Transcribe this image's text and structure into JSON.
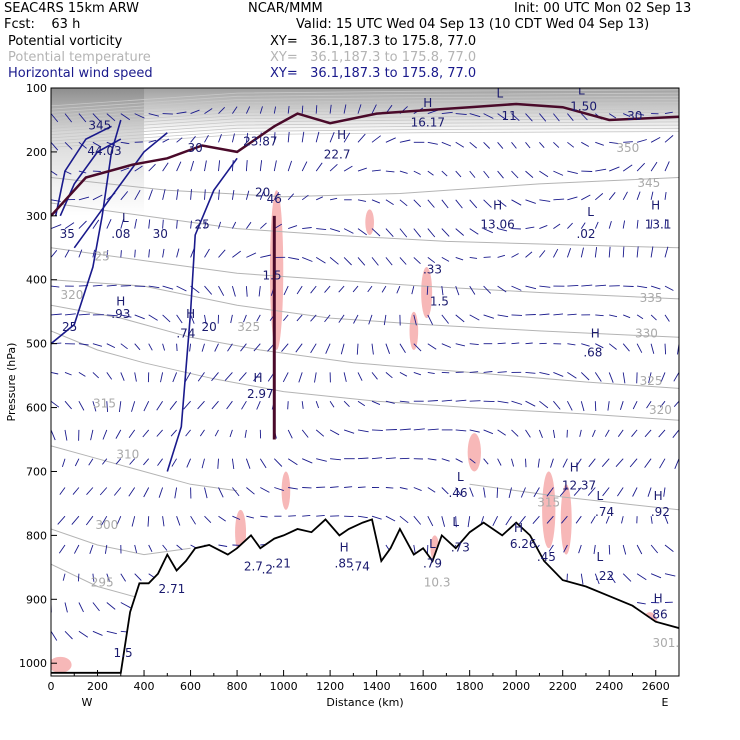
{
  "header": {
    "model": "SEAC4RS 15km ARW",
    "org": "NCAR/MMM",
    "init": "Init: 00 UTC Mon 02 Sep 13",
    "fcst": "Fcst:    63 h",
    "valid": "Valid: 15 UTC Wed 04 Sep 13 (10 CDT Wed 04 Sep 13)"
  },
  "legend": [
    {
      "label": "Potential vorticity",
      "xy": "XY=   36.1,187.3 to 175.8, 77.0",
      "color": "#000000"
    },
    {
      "label": "Potential temperature",
      "xy": "XY=   36.1,187.3 to 175.8, 77.0",
      "color": "#b4b4b4"
    },
    {
      "label": "Horizontal wind speed",
      "xy": "XY=   36.1,187.3 to 175.8, 77.0",
      "color": "#1a1a8c"
    }
  ],
  "chart_data": {
    "type": "cross-section",
    "xlabel": "Distance (km)",
    "ylabel": "Pressure (hPa)",
    "xlim": [
      0,
      2700
    ],
    "ylim": [
      1020,
      100
    ],
    "x_ticks": [
      "0",
      "200",
      "400",
      "600",
      "800",
      "1000",
      "1200",
      "1400",
      "1600",
      "1800",
      "2000",
      "2200",
      "2400",
      "2600"
    ],
    "y_ticks": [
      "100",
      "200",
      "300",
      "400",
      "500",
      "600",
      "700",
      "800",
      "900",
      "1000"
    ],
    "y_tick_values": [
      100,
      200,
      300,
      400,
      500,
      600,
      700,
      800,
      900,
      1000
    ],
    "end_labels": {
      "left": "W",
      "right": "E"
    },
    "terrain": [
      [
        0,
        1015
      ],
      [
        300,
        1015
      ],
      [
        340,
        920
      ],
      [
        380,
        875
      ],
      [
        420,
        875
      ],
      [
        460,
        860
      ],
      [
        500,
        830
      ],
      [
        540,
        855
      ],
      [
        580,
        840
      ],
      [
        620,
        820
      ],
      [
        680,
        815
      ],
      [
        760,
        830
      ],
      [
        800,
        820
      ],
      [
        860,
        800
      ],
      [
        900,
        820
      ],
      [
        960,
        805
      ],
      [
        1000,
        800
      ],
      [
        1060,
        790
      ],
      [
        1120,
        795
      ],
      [
        1180,
        775
      ],
      [
        1240,
        800
      ],
      [
        1280,
        790
      ],
      [
        1340,
        780
      ],
      [
        1380,
        775
      ],
      [
        1420,
        840
      ],
      [
        1460,
        820
      ],
      [
        1500,
        790
      ],
      [
        1560,
        830
      ],
      [
        1600,
        820
      ],
      [
        1640,
        840
      ],
      [
        1680,
        800
      ],
      [
        1740,
        820
      ],
      [
        1800,
        795
      ],
      [
        1860,
        780
      ],
      [
        1940,
        800
      ],
      [
        2000,
        780
      ],
      [
        2060,
        800
      ],
      [
        2120,
        840
      ],
      [
        2200,
        870
      ],
      [
        2300,
        880
      ],
      [
        2400,
        895
      ],
      [
        2500,
        910
      ],
      [
        2600,
        935
      ],
      [
        2700,
        945
      ]
    ],
    "theta_contours": [
      {
        "label": "295",
        "points": [
          [
            0,
            845
          ],
          [
            200,
            880
          ],
          [
            400,
            900
          ]
        ]
      },
      {
        "label": "300",
        "points": [
          [
            0,
            790
          ],
          [
            200,
            815
          ],
          [
            400,
            830
          ],
          [
            600,
            820
          ]
        ]
      },
      {
        "label": "310",
        "points": [
          [
            0,
            660
          ],
          [
            200,
            680
          ],
          [
            400,
            700
          ],
          [
            600,
            720
          ],
          [
            800,
            730
          ]
        ]
      },
      {
        "label": "315",
        "points": [
          [
            1800,
            720
          ],
          [
            2200,
            740
          ],
          [
            2700,
            760
          ]
        ]
      },
      {
        "label": "320",
        "points": [
          [
            0,
            480
          ],
          [
            200,
            510
          ],
          [
            400,
            530
          ],
          [
            700,
            555
          ],
          [
            1000,
            575
          ],
          [
            1400,
            590
          ],
          [
            1800,
            600
          ],
          [
            2300,
            610
          ],
          [
            2700,
            620
          ]
        ]
      },
      {
        "label": "325",
        "points": [
          [
            0,
            440
          ],
          [
            300,
            460
          ],
          [
            600,
            490
          ],
          [
            900,
            510
          ],
          [
            1300,
            530
          ],
          [
            1800,
            545
          ],
          [
            2300,
            560
          ],
          [
            2700,
            570
          ]
        ]
      },
      {
        "label": "330",
        "points": [
          [
            0,
            400
          ],
          [
            400,
            410
          ],
          [
            800,
            440
          ],
          [
            1200,
            460
          ],
          [
            1600,
            470
          ],
          [
            2100,
            480
          ],
          [
            2700,
            490
          ]
        ]
      },
      {
        "label": "335",
        "points": [
          [
            0,
            350
          ],
          [
            400,
            370
          ],
          [
            800,
            390
          ],
          [
            1200,
            400
          ],
          [
            1600,
            410
          ],
          [
            2100,
            420
          ],
          [
            2700,
            430
          ]
        ]
      },
      {
        "label": "345",
        "points": [
          [
            0,
            280
          ],
          [
            400,
            300
          ],
          [
            800,
            320
          ],
          [
            1200,
            330
          ],
          [
            1700,
            340
          ],
          [
            2200,
            345
          ],
          [
            2700,
            350
          ]
        ]
      },
      {
        "label": "350",
        "points": [
          [
            0,
            240
          ],
          [
            500,
            260
          ],
          [
            1000,
            270
          ],
          [
            1500,
            265
          ],
          [
            2100,
            250
          ],
          [
            2700,
            240
          ]
        ]
      }
    ],
    "wind_contours": [
      {
        "label": "25",
        "points": [
          [
            0,
            500
          ],
          [
            100,
            470
          ],
          [
            180,
            380
          ],
          [
            220,
            300
          ],
          [
            260,
            200
          ],
          [
            300,
            150
          ]
        ]
      },
      {
        "label": "25",
        "points": [
          [
            500,
            700
          ],
          [
            560,
            630
          ],
          [
            600,
            450
          ],
          [
            620,
            330
          ],
          [
            700,
            260
          ],
          [
            800,
            210
          ]
        ]
      },
      {
        "label": "30",
        "points": [
          [
            100,
            350
          ],
          [
            200,
            300
          ],
          [
            300,
            250
          ],
          [
            400,
            200
          ],
          [
            500,
            170
          ]
        ]
      },
      {
        "label": "30",
        "points": [
          [
            40,
            300
          ],
          [
            100,
            250
          ],
          [
            200,
            200
          ],
          [
            300,
            180
          ]
        ]
      },
      {
        "label": "35",
        "points": [
          [
            20,
            300
          ],
          [
            60,
            230
          ],
          [
            150,
            180
          ],
          [
            260,
            160
          ]
        ]
      }
    ],
    "pv_line": [
      [
        0,
        300
      ],
      [
        150,
        240
      ],
      [
        350,
        220
      ],
      [
        500,
        210
      ],
      [
        650,
        190
      ],
      [
        800,
        200
      ],
      [
        960,
        160
      ],
      [
        1060,
        140
      ],
      [
        1200,
        155
      ],
      [
        1400,
        140
      ],
      [
        1600,
        135
      ],
      [
        1800,
        130
      ],
      [
        2000,
        125
      ],
      [
        2200,
        130
      ],
      [
        2400,
        150
      ],
      [
        2700,
        145
      ]
    ],
    "pv_deep_column": {
      "x": 960,
      "from": 300,
      "to": 650
    },
    "annotations": [
      {
        "text": "H",
        "x": 1620,
        "y": 130
      },
      {
        "text": "16.17",
        "x": 1620,
        "y": 160
      },
      {
        "text": "L",
        "x": 1930,
        "y": 115
      },
      {
        "text": "11",
        "x": 1970,
        "y": 150
      },
      {
        "text": "L",
        "x": 2280,
        "y": 110
      },
      {
        "text": "1.50",
        "x": 2290,
        "y": 135
      },
      {
        "text": "30",
        "x": 2510,
        "y": 150
      },
      {
        "text": "345",
        "x": 210,
        "y": 165
      },
      {
        "text": "44.03",
        "x": 230,
        "y": 205
      },
      {
        "text": "30",
        "x": 620,
        "y": 200
      },
      {
        "text": "23.87",
        "x": 900,
        "y": 190
      },
      {
        "text": "H",
        "x": 1250,
        "y": 180
      },
      {
        "text": "22.7",
        "x": 1230,
        "y": 210
      },
      {
        "text": "20",
        "x": 910,
        "y": 270
      },
      {
        "text": "46",
        "x": 960,
        "y": 280
      },
      {
        "text": "H",
        "x": 1920,
        "y": 290
      },
      {
        "text": "13.06",
        "x": 1920,
        "y": 320
      },
      {
        "text": "L",
        "x": 2320,
        "y": 300
      },
      {
        "text": ".02",
        "x": 2300,
        "y": 335
      },
      {
        "text": "H",
        "x": 2600,
        "y": 290
      },
      {
        "text": "13.1",
        "x": 2610,
        "y": 320
      },
      {
        "text": "L",
        "x": 320,
        "y": 310
      },
      {
        "text": ".08",
        "x": 300,
        "y": 335
      },
      {
        "text": "30",
        "x": 470,
        "y": 335
      },
      {
        "text": "25",
        "x": 650,
        "y": 320
      },
      {
        "text": "35",
        "x": 70,
        "y": 335
      },
      {
        "text": "1.5",
        "x": 950,
        "y": 400
      },
      {
        "text": ".33",
        "x": 1640,
        "y": 390
      },
      {
        "text": "1.5",
        "x": 1670,
        "y": 440
      },
      {
        "text": "H",
        "x": 300,
        "y": 440
      },
      {
        "text": ".93",
        "x": 300,
        "y": 460
      },
      {
        "text": "H",
        "x": 600,
        "y": 460
      },
      {
        "text": ".74",
        "x": 580,
        "y": 490
      },
      {
        "text": "20",
        "x": 680,
        "y": 480
      },
      {
        "text": "25",
        "x": 80,
        "y": 480
      },
      {
        "text": "H",
        "x": 2340,
        "y": 490
      },
      {
        "text": ".68",
        "x": 2330,
        "y": 520
      },
      {
        "text": "H",
        "x": 890,
        "y": 560
      },
      {
        "text": "2.97",
        "x": 900,
        "y": 585
      },
      {
        "text": "L",
        "x": 1760,
        "y": 715
      },
      {
        "text": ".46",
        "x": 1750,
        "y": 740
      },
      {
        "text": "H",
        "x": 2250,
        "y": 700
      },
      {
        "text": "12.37",
        "x": 2270,
        "y": 728
      },
      {
        "text": "L",
        "x": 2360,
        "y": 745
      },
      {
        "text": ".74",
        "x": 2380,
        "y": 770
      },
      {
        "text": "H",
        "x": 2610,
        "y": 745
      },
      {
        "text": ".92",
        "x": 2620,
        "y": 770
      },
      {
        "text": "L",
        "x": 1740,
        "y": 785
      },
      {
        "text": ".73",
        "x": 1760,
        "y": 825
      },
      {
        "text": "H",
        "x": 2010,
        "y": 795
      },
      {
        "text": "6.26",
        "x": 2030,
        "y": 820
      },
      {
        "text": ".45",
        "x": 2130,
        "y": 840
      },
      {
        "text": "L",
        "x": 1640,
        "y": 820
      },
      {
        "text": ".79",
        "x": 1640,
        "y": 850
      },
      {
        "text": "H",
        "x": 1260,
        "y": 825
      },
      {
        "text": ".85",
        "x": 1260,
        "y": 850
      },
      {
        "text": ".74",
        "x": 1330,
        "y": 855
      },
      {
        "text": "2.7",
        "x": 870,
        "y": 855
      },
      {
        "text": ".2",
        "x": 930,
        "y": 860
      },
      {
        "text": ".21",
        "x": 990,
        "y": 850
      },
      {
        "text": "L",
        "x": 2360,
        "y": 840
      },
      {
        "text": ".22",
        "x": 2380,
        "y": 870
      },
      {
        "text": "H",
        "x": 2610,
        "y": 905
      },
      {
        "text": ".86",
        "x": 2610,
        "y": 930
      },
      {
        "text": "2.71",
        "x": 520,
        "y": 890
      },
      {
        "text": "1.5",
        "x": 310,
        "y": 990
      }
    ],
    "theta_extra_labels": [
      {
        "text": "350",
        "x": 2480,
        "y": 200
      },
      {
        "text": "345",
        "x": 2570,
        "y": 255
      },
      {
        "text": "335",
        "x": 2580,
        "y": 435
      },
      {
        "text": "330",
        "x": 2560,
        "y": 490
      },
      {
        "text": "325",
        "x": 2580,
        "y": 565
      },
      {
        "text": "320",
        "x": 2620,
        "y": 610
      },
      {
        "text": "320",
        "x": 90,
        "y": 430
      },
      {
        "text": "325",
        "x": 850,
        "y": 480
      },
      {
        "text": "315",
        "x": 230,
        "y": 600
      },
      {
        "text": "310",
        "x": 330,
        "y": 680
      },
      {
        "text": "300",
        "x": 240,
        "y": 790
      },
      {
        "text": "295",
        "x": 220,
        "y": 880
      },
      {
        "text": "315",
        "x": 2140,
        "y": 755
      },
      {
        "text": "10.3",
        "x": 1660,
        "y": 880
      },
      {
        "text": "301.5",
        "x": 2660,
        "y": 975
      },
      {
        "text": "25",
        "x": 220,
        "y": 370
      }
    ]
  }
}
